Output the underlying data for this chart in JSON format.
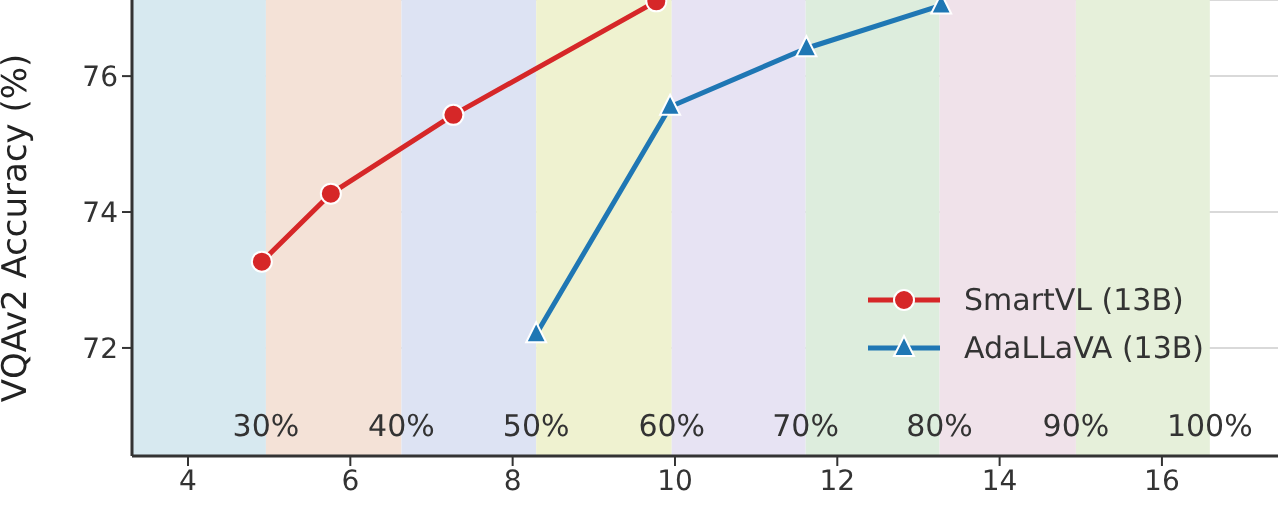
{
  "chart_data": {
    "type": "line",
    "ylabel": "VQAv2 Accuracy (%)",
    "xlim": [
      3.31,
      17.43
    ],
    "xticks": [
      4,
      6,
      8,
      10,
      12,
      14,
      16
    ],
    "ylim": [
      70.41,
      77.12
    ],
    "yticks": [
      72,
      74,
      76
    ],
    "grid": "y",
    "legend": "bottom right",
    "line_style": "solid",
    "series": [
      {
        "name": "SmartVL (13B)",
        "color": "#d62728",
        "marker": "circle",
        "x": [
          4.91,
          5.76,
          7.27,
          9.77
        ],
        "values": [
          73.27,
          74.27,
          75.43,
          77.1
        ]
      },
      {
        "name": "AdaLLaVA (13B)",
        "color": "#1f77b4",
        "marker": "triangle",
        "x": [
          8.29,
          9.94,
          11.62,
          13.28
        ],
        "values": [
          72.2,
          75.55,
          76.41,
          77.04
        ]
      }
    ],
    "bands": [
      {
        "axis": "x",
        "from": 3.31,
        "to": 4.96,
        "label": "30%",
        "color": "#d7e9f0"
      },
      {
        "axis": "x",
        "from": 4.96,
        "to": 6.63,
        "label": "40%",
        "color": "#f4e2d7"
      },
      {
        "axis": "x",
        "from": 6.63,
        "to": 8.29,
        "label": "50%",
        "color": "#dde3f3"
      },
      {
        "axis": "x",
        "from": 8.29,
        "to": 9.96,
        "label": "60%",
        "color": "#eff2d0"
      },
      {
        "axis": "x",
        "from": 9.96,
        "to": 11.61,
        "label": "70%",
        "color": "#e7e3f3"
      },
      {
        "axis": "x",
        "from": 11.61,
        "to": 13.26,
        "label": "80%",
        "color": "#ddeddd"
      },
      {
        "axis": "x",
        "from": 13.26,
        "to": 14.94,
        "label": "90%",
        "color": "#f0e2ea"
      },
      {
        "axis": "x",
        "from": 14.94,
        "to": 16.59,
        "label": "100%",
        "color": "#e6f0da"
      }
    ]
  }
}
